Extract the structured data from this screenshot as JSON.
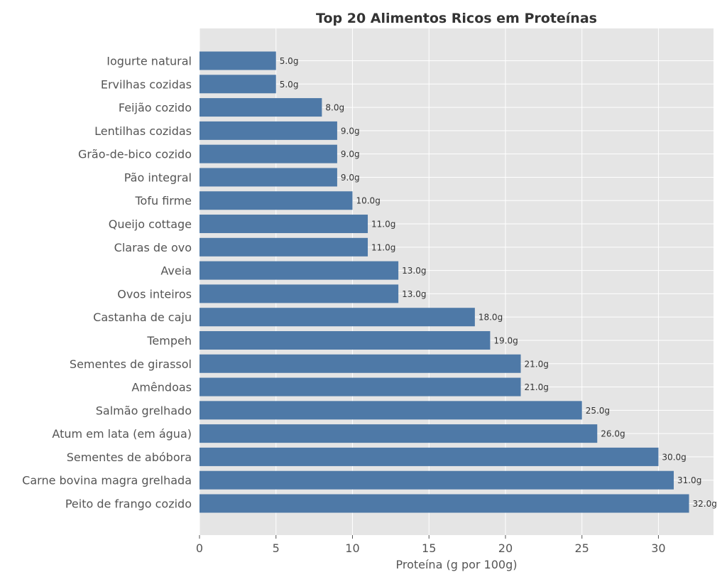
{
  "chart_data": {
    "type": "bar",
    "orientation": "horizontal",
    "title": "Top 20 Alimentos Ricos em Proteínas",
    "xlabel": "Proteína (g por 100g)",
    "ylabel": "",
    "xlim": [
      0,
      33.6
    ],
    "xticks": [
      0,
      5,
      10,
      15,
      20,
      25,
      30
    ],
    "grid": true,
    "categories": [
      "Iogurte natural",
      "Ervilhas cozidas",
      "Feijão cozido",
      "Lentilhas cozidas",
      "Grão-de-bico cozido",
      "Pão integral",
      "Tofu firme",
      "Queijo cottage",
      "Claras de ovo",
      "Aveia",
      "Ovos inteiros",
      "Castanha de caju",
      "Tempeh",
      "Sementes de girassol",
      "Amêndoas",
      "Salmão grelhado",
      "Atum em lata (em água)",
      "Sementes de abóbora",
      "Carne bovina magra grelhada",
      "Peito de frango cozido"
    ],
    "values": [
      5.0,
      5.0,
      8.0,
      9.0,
      9.0,
      9.0,
      10.0,
      11.0,
      11.0,
      13.0,
      13.0,
      18.0,
      19.0,
      21.0,
      21.0,
      25.0,
      26.0,
      30.0,
      31.0,
      32.0
    ],
    "value_labels": [
      "5.0g",
      "5.0g",
      "8.0g",
      "9.0g",
      "9.0g",
      "9.0g",
      "10.0g",
      "11.0g",
      "11.0g",
      "13.0g",
      "13.0g",
      "18.0g",
      "19.0g",
      "21.0g",
      "21.0g",
      "25.0g",
      "26.0g",
      "30.0g",
      "31.0g",
      "32.0g"
    ],
    "colors": {
      "bar": "#4e79a7",
      "plot_bg": "#e5e5e5",
      "grid": "#ffffff"
    }
  }
}
